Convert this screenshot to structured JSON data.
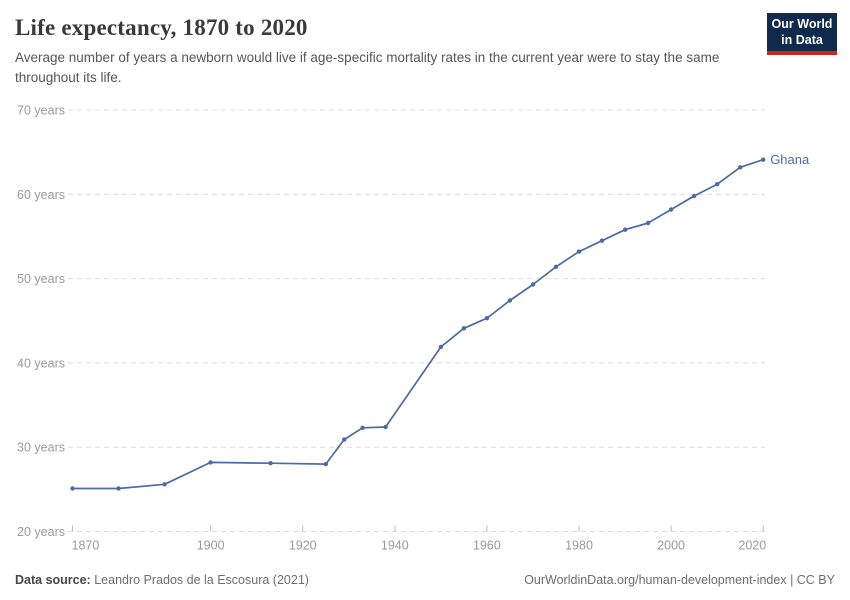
{
  "header": {
    "title": "Life expectancy, 1870 to 2020",
    "subtitle": "Average number of years a newborn would live if age-specific mortality rates in the current year were to stay the same throughout its life."
  },
  "logo": {
    "line1": "Our World",
    "line2": "in Data"
  },
  "chart_data": {
    "type": "line",
    "title": "Life expectancy, 1870 to 2020",
    "xlabel": "",
    "ylabel": "",
    "x_domain": [
      1870,
      2020
    ],
    "y_domain": [
      20,
      70
    ],
    "x_ticks": [
      1870,
      1900,
      1920,
      1940,
      1960,
      1980,
      2000,
      2020
    ],
    "y_ticks": [
      20,
      30,
      40,
      50,
      60,
      70
    ],
    "y_tick_suffix": " years",
    "grid": true,
    "legend_position": "end-of-line",
    "series": [
      {
        "name": "Ghana",
        "color": "#4c6ba5",
        "points": [
          [
            1870,
            25.1
          ],
          [
            1880,
            25.1
          ],
          [
            1890,
            25.6
          ],
          [
            1900,
            28.2
          ],
          [
            1913,
            28.1
          ],
          [
            1925,
            28.0
          ],
          [
            1929,
            30.9
          ],
          [
            1933,
            32.3
          ],
          [
            1938,
            32.4
          ],
          [
            1950,
            41.9
          ],
          [
            1955,
            44.1
          ],
          [
            1960,
            45.3
          ],
          [
            1965,
            47.4
          ],
          [
            1970,
            49.3
          ],
          [
            1975,
            51.4
          ],
          [
            1980,
            53.2
          ],
          [
            1985,
            54.5
          ],
          [
            1990,
            55.8
          ],
          [
            1995,
            56.6
          ],
          [
            2000,
            58.2
          ],
          [
            2005,
            59.8
          ],
          [
            2010,
            61.2
          ],
          [
            2015,
            63.2
          ],
          [
            2020,
            64.1
          ]
        ]
      }
    ]
  },
  "footer": {
    "source_label": "Data source:",
    "source_text": "Leandro Prados de la Escosura (2021)",
    "credit": "OurWorldinData.org/human-development-index | CC BY"
  },
  "colors": {
    "accent_line": "#4c6ba5",
    "grid": "#dcdcdc",
    "tick_text": "#9a9a9a",
    "logo_bg": "#102a4c",
    "logo_stripe": "#c7291f"
  }
}
